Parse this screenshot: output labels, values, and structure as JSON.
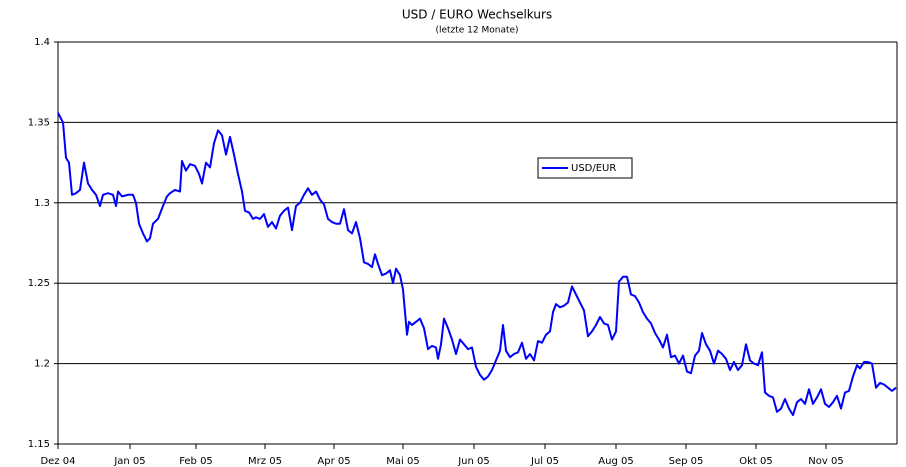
{
  "chart_data": {
    "type": "line",
    "title": "USD / EURO Wechselkurs",
    "subtitle": "(letzte 12 Monate)",
    "xlim": [
      0,
      839
    ],
    "xticks": [
      {
        "value": 0,
        "label": "Dez 04"
      },
      {
        "value": 72,
        "label": "Jan 05"
      },
      {
        "value": 138,
        "label": "Feb 05"
      },
      {
        "value": 207,
        "label": "Mrz 05"
      },
      {
        "value": 276,
        "label": "Apr 05"
      },
      {
        "value": 345,
        "label": "Mai 05"
      },
      {
        "value": 416,
        "label": "Jun 05"
      },
      {
        "value": 487,
        "label": "Jul 05"
      },
      {
        "value": 558,
        "label": "Aug 05"
      },
      {
        "value": 628,
        "label": "Sep 05"
      },
      {
        "value": 698,
        "label": "Okt 05"
      },
      {
        "value": 768,
        "label": "Nov 05"
      }
    ],
    "ylim": [
      1.15,
      1.4
    ],
    "yticks": [
      1.15,
      1.2,
      1.25,
      1.3,
      1.35,
      1.4
    ],
    "grid": true,
    "legend": "inside",
    "x": [
      0,
      5,
      8,
      11,
      14,
      18,
      22,
      26,
      30,
      34,
      38,
      42,
      45,
      50,
      55,
      58,
      60,
      64,
      70,
      75,
      78,
      81,
      85,
      89,
      92,
      95,
      100,
      105,
      109,
      112,
      117,
      122,
      124,
      128,
      132,
      137,
      141,
      144,
      148,
      152,
      156,
      160,
      164,
      168,
      172,
      176,
      180,
      184,
      187,
      191,
      195,
      198,
      202,
      206,
      210,
      214,
      218,
      222,
      226,
      230,
      234,
      238,
      242,
      246,
      250,
      254,
      258,
      262,
      266,
      270,
      274,
      278,
      282,
      286,
      290,
      294,
      298,
      302,
      306,
      310,
      314,
      317,
      320,
      324,
      328,
      332,
      335,
      338,
      342,
      345,
      347,
      349,
      351,
      354,
      358,
      362,
      366,
      370,
      374,
      378,
      380,
      383,
      386,
      390,
      394,
      398,
      402,
      406,
      410,
      414,
      418,
      422,
      426,
      430,
      434,
      438,
      442,
      445,
      448,
      452,
      456,
      460,
      464,
      468,
      472,
      476,
      480,
      484,
      488,
      492,
      495,
      498,
      502,
      506,
      510,
      514,
      518,
      522,
      526,
      530,
      534,
      538,
      542,
      546,
      550,
      554,
      558,
      561,
      565,
      569,
      573,
      577,
      581,
      585,
      589,
      593,
      597,
      601,
      605,
      609,
      613,
      617,
      621,
      625,
      629,
      633,
      637,
      641,
      644,
      648,
      652,
      656,
      660,
      664,
      668,
      672,
      676,
      680,
      684,
      688,
      692,
      696,
      700,
      704,
      707,
      711,
      715,
      719,
      723,
      727,
      731,
      735,
      739,
      743,
      747,
      751,
      755,
      759,
      763,
      767,
      771,
      775,
      779,
      783,
      787,
      791,
      795,
      799,
      802,
      806,
      810,
      814,
      818,
      822,
      826,
      830,
      834,
      838
    ],
    "series": [
      {
        "name": "USD/EUR",
        "color": "#0000ff",
        "values": [
          1.356,
          1.35,
          1.328,
          1.325,
          1.305,
          1.306,
          1.308,
          1.325,
          1.312,
          1.308,
          1.305,
          1.298,
          1.305,
          1.306,
          1.305,
          1.298,
          1.307,
          1.304,
          1.305,
          1.305,
          1.3,
          1.287,
          1.281,
          1.276,
          1.278,
          1.287,
          1.29,
          1.298,
          1.304,
          1.306,
          1.308,
          1.307,
          1.326,
          1.32,
          1.324,
          1.323,
          1.318,
          1.312,
          1.325,
          1.322,
          1.337,
          1.345,
          1.342,
          1.33,
          1.341,
          1.33,
          1.318,
          1.307,
          1.295,
          1.294,
          1.29,
          1.291,
          1.29,
          1.293,
          1.285,
          1.288,
          1.284,
          1.292,
          1.295,
          1.297,
          1.283,
          1.298,
          1.3,
          1.305,
          1.309,
          1.305,
          1.307,
          1.302,
          1.299,
          1.29,
          1.288,
          1.287,
          1.287,
          1.296,
          1.283,
          1.281,
          1.288,
          1.278,
          1.263,
          1.262,
          1.26,
          1.268,
          1.262,
          1.255,
          1.256,
          1.258,
          1.25,
          1.259,
          1.255,
          1.246,
          1.232,
          1.218,
          1.226,
          1.224,
          1.226,
          1.228,
          1.222,
          1.209,
          1.211,
          1.21,
          1.203,
          1.212,
          1.228,
          1.222,
          1.215,
          1.206,
          1.215,
          1.212,
          1.209,
          1.21,
          1.198,
          1.193,
          1.19,
          1.192,
          1.196,
          1.202,
          1.208,
          1.224,
          1.208,
          1.204,
          1.206,
          1.207,
          1.213,
          1.203,
          1.206,
          1.202,
          1.214,
          1.213,
          1.218,
          1.22,
          1.232,
          1.237,
          1.235,
          1.236,
          1.238,
          1.248,
          1.243,
          1.238,
          1.233,
          1.217,
          1.22,
          1.224,
          1.229,
          1.225,
          1.224,
          1.215,
          1.22,
          1.251,
          1.254,
          1.254,
          1.243,
          1.242,
          1.238,
          1.232,
          1.228,
          1.225,
          1.219,
          1.215,
          1.21,
          1.218,
          1.204,
          1.205,
          1.2,
          1.205,
          1.195,
          1.194,
          1.205,
          1.208,
          1.219,
          1.212,
          1.208,
          1.2,
          1.208,
          1.206,
          1.203,
          1.196,
          1.201,
          1.196,
          1.199,
          1.212,
          1.202,
          1.2,
          1.199,
          1.207,
          1.182,
          1.18,
          1.179,
          1.17,
          1.172,
          1.178,
          1.172,
          1.168,
          1.176,
          1.178,
          1.175,
          1.184,
          1.175,
          1.179,
          1.184,
          1.175,
          1.173,
          1.176,
          1.18,
          1.172,
          1.182,
          1.183,
          1.192,
          1.199,
          1.197,
          1.201,
          1.201,
          1.2,
          1.185,
          1.188,
          1.187,
          1.185,
          1.183,
          1.185
        ]
      }
    ]
  }
}
